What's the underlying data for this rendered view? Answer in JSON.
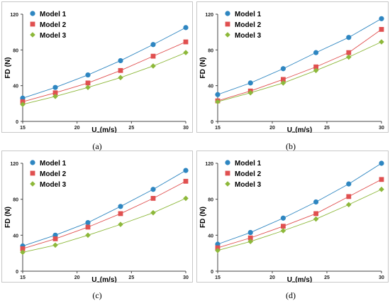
{
  "colors": {
    "model_1": "#2E86C1",
    "model_2": "#E05050",
    "model_3": "#8DB83A",
    "frame": "#C8C8C8",
    "axis": "#444444"
  },
  "markers": {
    "model_1": "circle",
    "model_2": "square",
    "model_3": "diamond"
  },
  "captions": [
    "(a)",
    "(b)",
    "(c)",
    "(d)"
  ],
  "chart_data": [
    {
      "type": "line",
      "xlabel_main": "U",
      "xlabel_sub": "∞",
      "xlabel_unit": "(m/s)",
      "ylabel": "FD (N)",
      "x": [
        15,
        18,
        21,
        24,
        27,
        30
      ],
      "xlim": [
        15,
        30
      ],
      "ylim": [
        0,
        120
      ],
      "xticks": [
        "15",
        "20",
        "25",
        "30"
      ],
      "yticks": [
        "0",
        "40",
        "80",
        "120"
      ],
      "grid": false,
      "legend_position": "top-left",
      "series": [
        {
          "name": "Model 1",
          "values": [
            26,
            38,
            52,
            68,
            86,
            105
          ]
        },
        {
          "name": "Model 2",
          "values": [
            22,
            32,
            43,
            57,
            73,
            89
          ]
        },
        {
          "name": "Model 3",
          "values": [
            19,
            28,
            38,
            49,
            62,
            77
          ]
        }
      ]
    },
    {
      "type": "line",
      "xlabel_main": "U",
      "xlabel_sub": "∞",
      "xlabel_unit": "(m/s)",
      "ylabel": "FD (N)",
      "x": [
        15,
        18,
        21,
        24,
        27,
        30
      ],
      "xlim": [
        15,
        30
      ],
      "ylim": [
        0,
        120
      ],
      "xticks": [
        "15",
        "20",
        "25",
        "30"
      ],
      "yticks": [
        "0",
        "40",
        "80",
        "120"
      ],
      "grid": false,
      "legend_position": "top-left",
      "series": [
        {
          "name": "Model 1",
          "values": [
            30,
            43,
            59,
            77,
            94,
            115
          ]
        },
        {
          "name": "Model 2",
          "values": [
            23,
            34,
            47,
            61,
            77,
            103
          ]
        },
        {
          "name": "Model 3",
          "values": [
            22,
            32,
            43,
            57,
            72,
            89
          ]
        }
      ]
    },
    {
      "type": "line",
      "xlabel_main": "U",
      "xlabel_sub": "∞",
      "xlabel_unit": "(m/s)",
      "ylabel": "FD (N)",
      "x": [
        15,
        18,
        21,
        24,
        27,
        30
      ],
      "xlim": [
        15,
        30
      ],
      "ylim": [
        0,
        120
      ],
      "xticks": [
        "15",
        "20",
        "25",
        "30"
      ],
      "yticks": [
        "0",
        "40",
        "80",
        "120"
      ],
      "grid": false,
      "legend_position": "top-left",
      "series": [
        {
          "name": "Model 1",
          "values": [
            28,
            40,
            54,
            72,
            91,
            112
          ]
        },
        {
          "name": "Model 2",
          "values": [
            25,
            36,
            49,
            64,
            81,
            100
          ]
        },
        {
          "name": "Model 3",
          "values": [
            21,
            29,
            40,
            52,
            65,
            81
          ]
        }
      ]
    },
    {
      "type": "line",
      "xlabel_main": "U",
      "xlabel_sub": "∞",
      "xlabel_unit": "(m/s)",
      "ylabel": "FD (N)",
      "x": [
        15,
        18,
        21,
        24,
        27,
        30
      ],
      "xlim": [
        15,
        30
      ],
      "ylim": [
        0,
        120
      ],
      "xticks": [
        "15",
        "20",
        "25",
        "30"
      ],
      "yticks": [
        "0",
        "40",
        "80",
        "120"
      ],
      "grid": false,
      "legend_position": "top-left",
      "series": [
        {
          "name": "Model 1",
          "values": [
            30,
            43,
            59,
            77,
            97,
            120
          ]
        },
        {
          "name": "Model 2",
          "values": [
            26,
            37,
            50,
            64,
            83,
            102
          ]
        },
        {
          "name": "Model 3",
          "values": [
            23,
            33,
            45,
            58,
            74,
            91
          ]
        }
      ]
    }
  ]
}
